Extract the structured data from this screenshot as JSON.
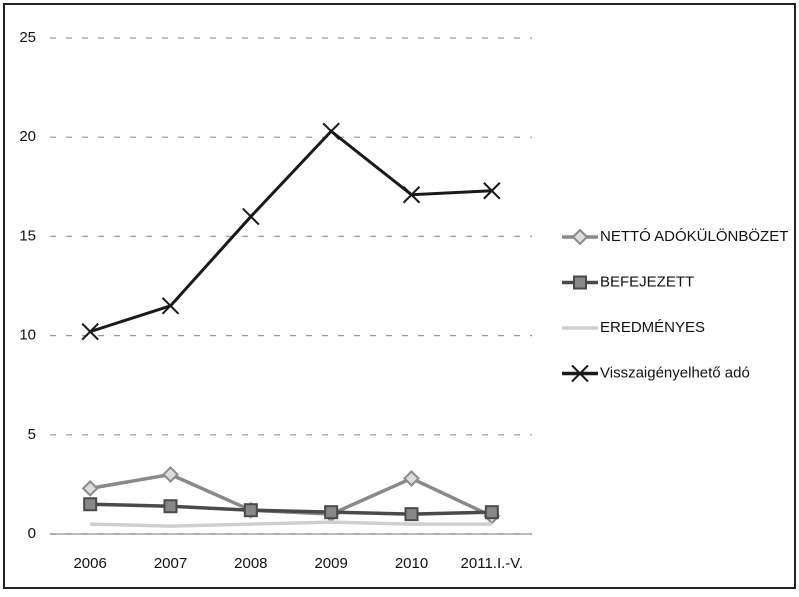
{
  "chart_data": {
    "type": "line",
    "categories": [
      "2006",
      "2007",
      "2008",
      "2009",
      "2010",
      "2011.I.-V."
    ],
    "series": [
      {
        "name": "NETTÓ ADÓKÜLÖNBÖZET",
        "color": "#8a8a8a",
        "marker": "diamond",
        "values": [
          2.3,
          3.0,
          1.2,
          1.0,
          2.8,
          0.9
        ]
      },
      {
        "name": "BEFEJEZETT",
        "color": "#4a4a4a",
        "marker": "square",
        "values": [
          1.5,
          1.4,
          1.2,
          1.1,
          1.0,
          1.1
        ]
      },
      {
        "name": "EREDMÉNYES",
        "color": "#cfcfcf",
        "marker": "none",
        "values": [
          0.5,
          0.4,
          0.5,
          0.6,
          0.5,
          0.5
        ]
      },
      {
        "name": "Visszaigényelhető adó",
        "color": "#1a1a1a",
        "marker": "x",
        "values": [
          10.2,
          11.5,
          16.0,
          20.3,
          17.1,
          17.3
        ]
      }
    ],
    "ylim": [
      0,
      25
    ],
    "yticks": [
      0,
      5,
      10,
      15,
      20,
      25
    ],
    "grid": true,
    "legend": "right"
  }
}
